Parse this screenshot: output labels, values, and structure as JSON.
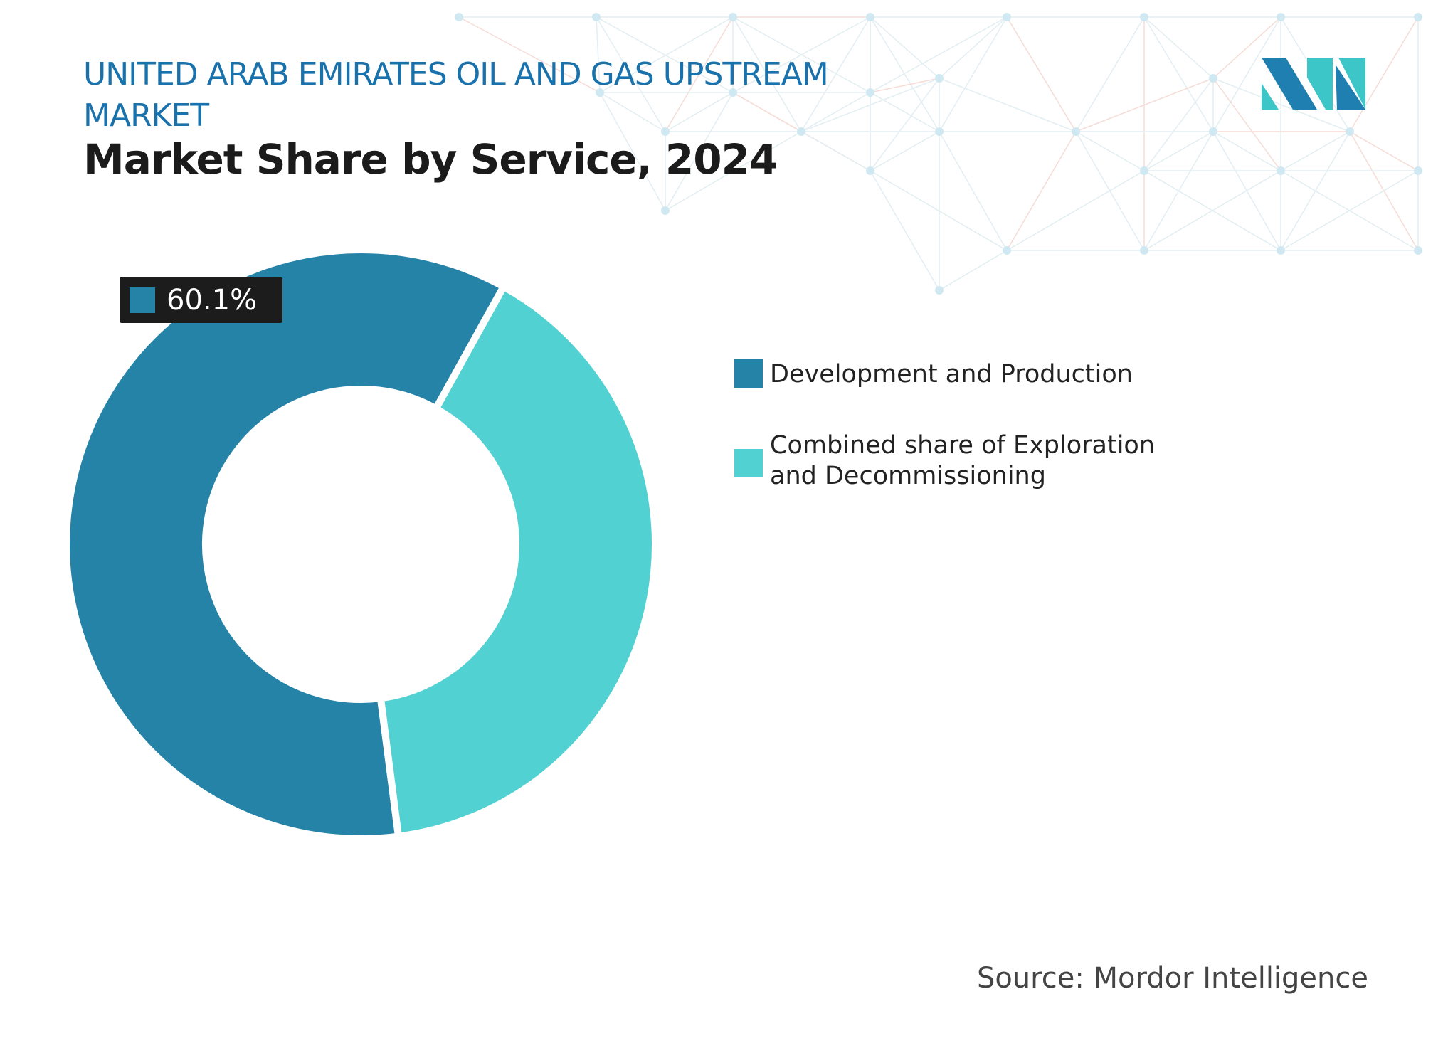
{
  "header": {
    "title": "UNITED ARAB EMIRATES OIL AND GAS UPSTREAM MARKET",
    "subtitle": "Market Share by Service, 2024"
  },
  "chart_data": {
    "type": "pie",
    "variant": "donut",
    "categories": [
      "Development and Production",
      "Combined share of Exploration and Decommissioning"
    ],
    "values": [
      60.1,
      39.9
    ],
    "colors": [
      "#2683a8",
      "#52d1d3"
    ],
    "data_labels": [
      {
        "category": "Development and Production",
        "text": "60.1%"
      }
    ],
    "legend": "right"
  },
  "source": "Source: Mordor Intelligence",
  "logo": {
    "icon": "mordor-intelligence-logo",
    "colors": [
      "#1f7fb0",
      "#3cc6c8"
    ]
  }
}
